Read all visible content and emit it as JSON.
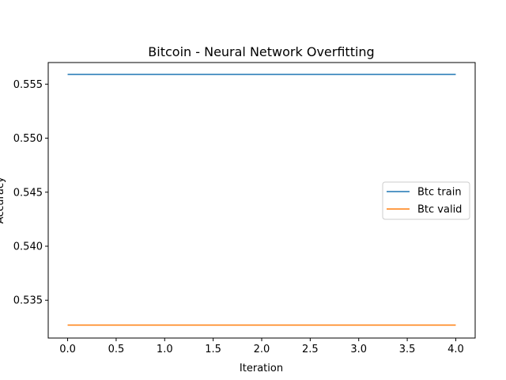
{
  "chart_data": {
    "type": "line",
    "title": "Bitcoin - Neural Network Overfitting",
    "xlabel": "Iteration",
    "ylabel": "Accuracy",
    "x": [
      0,
      1,
      2,
      3,
      4
    ],
    "xlim": [
      -0.2,
      4.2
    ],
    "ylim": [
      0.5315,
      0.557
    ],
    "xticks": [
      0.0,
      0.5,
      1.0,
      1.5,
      2.0,
      2.5,
      3.0,
      3.5,
      4.0
    ],
    "xtick_labels": [
      "0.0",
      "0.5",
      "1.0",
      "1.5",
      "2.0",
      "2.5",
      "3.0",
      "3.5",
      "4.0"
    ],
    "yticks": [
      0.535,
      0.54,
      0.545,
      0.55,
      0.555
    ],
    "ytick_labels": [
      "0.535",
      "0.540",
      "0.545",
      "0.550",
      "0.555"
    ],
    "grid": false,
    "legend_position": "center-right",
    "series": [
      {
        "name": "Btc train",
        "color": "#1f77b4",
        "values": [
          0.5559,
          0.5559,
          0.5559,
          0.5559,
          0.5559
        ]
      },
      {
        "name": "Btc valid",
        "color": "#ff7f0e",
        "values": [
          0.5327,
          0.5327,
          0.5327,
          0.5327,
          0.5327
        ]
      }
    ]
  }
}
